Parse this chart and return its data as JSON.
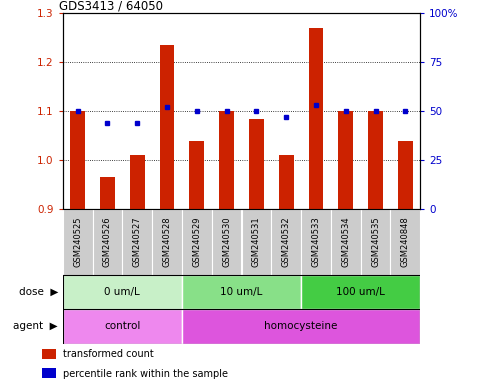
{
  "title": "GDS3413 / 64050",
  "samples": [
    "GSM240525",
    "GSM240526",
    "GSM240527",
    "GSM240528",
    "GSM240529",
    "GSM240530",
    "GSM240531",
    "GSM240532",
    "GSM240533",
    "GSM240534",
    "GSM240535",
    "GSM240848"
  ],
  "red_values": [
    1.1,
    0.965,
    1.01,
    1.235,
    1.04,
    1.1,
    1.085,
    1.01,
    1.27,
    1.1,
    1.1,
    1.04
  ],
  "blue_values": [
    50,
    44,
    44,
    52,
    50,
    50,
    50,
    47,
    53,
    50,
    50,
    50
  ],
  "ylim_left": [
    0.9,
    1.3
  ],
  "ylim_right": [
    0,
    100
  ],
  "yticks_left": [
    0.9,
    1.0,
    1.1,
    1.2,
    1.3
  ],
  "yticks_right": [
    0,
    25,
    50,
    75,
    100
  ],
  "ytick_labels_right": [
    "0",
    "25",
    "50",
    "75",
    "100%"
  ],
  "hlines": [
    1.0,
    1.1,
    1.2
  ],
  "dose_groups": [
    {
      "label": "0 um/L",
      "start": 0,
      "end": 4,
      "color": "#c8f0c8"
    },
    {
      "label": "10 um/L",
      "start": 4,
      "end": 8,
      "color": "#88e088"
    },
    {
      "label": "100 um/L",
      "start": 8,
      "end": 12,
      "color": "#44cc44"
    }
  ],
  "agent_groups": [
    {
      "label": "control",
      "start": 0,
      "end": 4,
      "color": "#ee88ee"
    },
    {
      "label": "homocysteine",
      "start": 4,
      "end": 12,
      "color": "#dd55dd"
    }
  ],
  "bar_color": "#cc2200",
  "dot_color": "#0000cc",
  "tick_color_left": "#cc2200",
  "tick_color_right": "#0000cc",
  "sample_box_color": "#cccccc",
  "base_value": 0.9,
  "bar_width": 0.5,
  "legend_items": [
    {
      "label": "transformed count",
      "color": "#cc2200"
    },
    {
      "label": "percentile rank within the sample",
      "color": "#0000cc"
    }
  ]
}
